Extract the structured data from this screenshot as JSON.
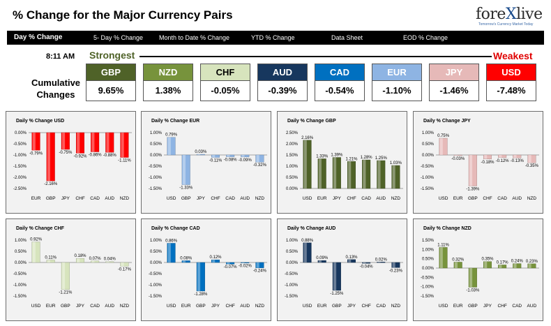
{
  "header": {
    "title": "% Change for the Major Currency Pairs"
  },
  "logo": {
    "main_pre": "fore",
    "main_x": "X",
    "main_post": "live",
    "tagline": "Tomorrow's Currency Market Today"
  },
  "nav": [
    "Day % Change",
    "5- Day % Change",
    "Month to Date % Change",
    "YTD % Change",
    "Data Sheet",
    "EOD % Change"
  ],
  "time": "8:11 AM",
  "strongest_label": "Strongest",
  "weakest_label": "Weakest",
  "cumulative_label": "Cumulative Changes",
  "currencies": [
    {
      "name": "GBP",
      "value": "9.65%",
      "color": "#4f6228"
    },
    {
      "name": "NZD",
      "value": "1.38%",
      "color": "#77933c"
    },
    {
      "name": "CHF",
      "value": "-0.05%",
      "color": "#d7e4bd"
    },
    {
      "name": "AUD",
      "value": "-0.39%",
      "color": "#17375e"
    },
    {
      "name": "CAD",
      "value": "-0.54%",
      "color": "#0070c0"
    },
    {
      "name": "EUR",
      "value": "-1.10%",
      "color": "#8eb4e3"
    },
    {
      "name": "JPY",
      "value": "-1.46%",
      "color": "#e6b9b8"
    },
    {
      "name": "USD",
      "value": "-7.48%",
      "color": "#ff0000"
    }
  ],
  "chart_data": [
    {
      "type": "bar",
      "title": "Daily % Change USD",
      "color": "#ff0000",
      "categories": [
        "EUR",
        "GBP",
        "JPY",
        "CHF",
        "CAD",
        "AUD",
        "NZD"
      ],
      "values": [
        -0.79,
        -2.16,
        -0.75,
        -0.92,
        -0.86,
        -0.88,
        -1.11
      ],
      "labels": [
        "-0.79%",
        "-2.16%",
        "-0.75%",
        "-0.92%",
        "-0.86%",
        "-0.88%",
        "-1.11%"
      ],
      "ylim": [
        -2.5,
        0.0
      ],
      "ticks": [
        "0.00%",
        "-0.50%",
        "-1.00%",
        "-1.50%",
        "-2.00%",
        "-2.50%"
      ],
      "tickvals": [
        0,
        -0.5,
        -1,
        -1.5,
        -2,
        -2.5
      ]
    },
    {
      "type": "bar",
      "title": "Daily % Change EUR",
      "color": "#8eb4e3",
      "categories": [
        "USD",
        "GBP",
        "JPY",
        "CHF",
        "CAD",
        "AUD",
        "NZD"
      ],
      "values": [
        0.79,
        -1.33,
        0.03,
        -0.11,
        -0.08,
        -0.09,
        -0.32
      ],
      "labels": [
        "0.79%",
        "-1.33%",
        "0.03%",
        "-0.11%",
        "-0.08%",
        "-0.09%",
        "-0.32%"
      ],
      "ylim": [
        -1.5,
        1.0
      ],
      "ticks": [
        "1.00%",
        "0.50%",
        "0.00%",
        "-0.50%",
        "-1.00%",
        "-1.50%"
      ],
      "tickvals": [
        1,
        0.5,
        0,
        -0.5,
        -1,
        -1.5
      ]
    },
    {
      "type": "bar",
      "title": "Daily % Change GBP",
      "color": "#4f6228",
      "categories": [
        "USD",
        "EUR",
        "JPY",
        "CHF",
        "CAD",
        "AUD",
        "NZD"
      ],
      "values": [
        2.16,
        1.33,
        1.39,
        1.21,
        1.28,
        1.25,
        1.03
      ],
      "labels": [
        "2.16%",
        "1.33%",
        "1.39%",
        "1.21%",
        "1.28%",
        "1.25%",
        "1.03%"
      ],
      "ylim": [
        0,
        2.5
      ],
      "ticks": [
        "2.50%",
        "2.00%",
        "1.50%",
        "1.00%",
        "0.50%",
        "0.00%"
      ],
      "tickvals": [
        2.5,
        2,
        1.5,
        1,
        0.5,
        0
      ]
    },
    {
      "type": "bar",
      "title": "Daily % Change JPY",
      "color": "#e6b9b8",
      "categories": [
        "USD",
        "EUR",
        "GBP",
        "CHF",
        "CAD",
        "AUD",
        "NZD"
      ],
      "values": [
        0.75,
        -0.03,
        -1.39,
        -0.18,
        -0.12,
        -0.13,
        -0.35
      ],
      "labels": [
        "0.75%",
        "-0.03%",
        "-1.39%",
        "-0.18%",
        "-0.12%",
        "-0.13%",
        "-0.35%"
      ],
      "ylim": [
        -1.5,
        1.0
      ],
      "ticks": [
        "1.00%",
        "0.50%",
        "0.00%",
        "-0.50%",
        "-1.00%",
        "-1.50%"
      ],
      "tickvals": [
        1,
        0.5,
        0,
        -0.5,
        -1,
        -1.5
      ]
    },
    {
      "type": "bar",
      "title": "Daily % Change CHF",
      "color": "#d7e4bd",
      "categories": [
        "USD",
        "EUR",
        "GBP",
        "JPY",
        "CAD",
        "AUD",
        "NZD"
      ],
      "values": [
        0.92,
        0.11,
        -1.21,
        0.18,
        0.07,
        0.04,
        -0.17
      ],
      "labels": [
        "0.92%",
        "0.11%",
        "-1.21%",
        "0.18%",
        "0.07%",
        "0.04%",
        "-0.17%"
      ],
      "ylim": [
        -1.5,
        1.0
      ],
      "ticks": [
        "1.00%",
        "0.50%",
        "0.00%",
        "-0.50%",
        "-1.00%",
        "-1.50%"
      ],
      "tickvals": [
        1,
        0.5,
        0,
        -0.5,
        -1,
        -1.5
      ]
    },
    {
      "type": "bar",
      "title": "Daily % Change CAD",
      "color": "#0070c0",
      "categories": [
        "USD",
        "EUR",
        "GBP",
        "JPY",
        "CHF",
        "AUD",
        "NZD"
      ],
      "values": [
        0.86,
        0.08,
        -1.28,
        0.12,
        -0.07,
        -0.02,
        -0.24
      ],
      "labels": [
        "0.86%",
        "0.08%",
        "-1.28%",
        "0.12%",
        "-0.07%",
        "-0.02%",
        "-0.24%"
      ],
      "ylim": [
        -1.5,
        1.0
      ],
      "ticks": [
        "1.00%",
        "0.50%",
        "0.00%",
        "-0.50%",
        "-1.00%",
        "-1.50%"
      ],
      "tickvals": [
        1,
        0.5,
        0,
        -0.5,
        -1,
        -1.5
      ]
    },
    {
      "type": "bar",
      "title": "Daily % Change AUD",
      "color": "#17375e",
      "categories": [
        "USD",
        "EUR",
        "GBP",
        "JPY",
        "CHF",
        "CAD",
        "NZD"
      ],
      "values": [
        0.88,
        0.09,
        -1.25,
        0.13,
        -0.04,
        0.02,
        -0.23
      ],
      "labels": [
        "0.88%",
        "0.09%",
        "-1.25%",
        "0.13%",
        "-0.04%",
        "0.02%",
        "-0.23%"
      ],
      "ylim": [
        -1.5,
        1.0
      ],
      "ticks": [
        "1.00%",
        "0.50%",
        "0.00%",
        "-0.50%",
        "-1.00%",
        "-1.50%"
      ],
      "tickvals": [
        1,
        0.5,
        0,
        -0.5,
        -1,
        -1.5
      ]
    },
    {
      "type": "bar",
      "title": "Daily % Change NZD",
      "color": "#77933c",
      "categories": [
        "USD",
        "EUR",
        "GBP",
        "JPY",
        "CHF",
        "CAD",
        "AUD"
      ],
      "values": [
        1.11,
        0.32,
        -1.03,
        0.35,
        0.17,
        0.24,
        0.23
      ],
      "labels": [
        "1.11%",
        "0.32%",
        "-1.03%",
        "0.35%",
        "0.17%",
        "0.24%",
        "0.23%"
      ],
      "ylim": [
        -1.5,
        1.5
      ],
      "ticks": [
        "1.50%",
        "1.00%",
        "0.50%",
        "0.00%",
        "-0.50%",
        "-1.00%",
        "-1.50%"
      ],
      "tickvals": [
        1.5,
        1,
        0.5,
        0,
        -0.5,
        -1,
        -1.5
      ]
    }
  ]
}
